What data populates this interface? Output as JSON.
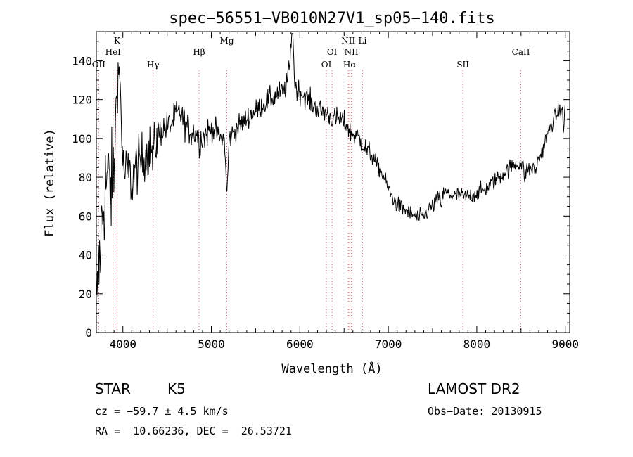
{
  "chart_data": {
    "type": "line",
    "title": "spec−56551−VB010N27V1_sp05−140.fits",
    "xlabel": "Wavelength (Å)",
    "ylabel": "Flux (relative)",
    "xlim": [
      3700,
      9050
    ],
    "ylim": [
      0,
      155
    ],
    "xticks": [
      "4000",
      "5000",
      "6000",
      "7000",
      "8000",
      "9000"
    ],
    "yticks": [
      "0",
      "20",
      "40",
      "60",
      "80",
      "100",
      "120",
      "140"
    ],
    "spectrum_anchors": [
      [
        3700,
        5
      ],
      [
        3720,
        25
      ],
      [
        3740,
        40
      ],
      [
        3760,
        55
      ],
      [
        3780,
        65
      ],
      [
        3800,
        75
      ],
      [
        3830,
        80
      ],
      [
        3860,
        75
      ],
      [
        3900,
        72
      ],
      [
        3950,
        78
      ],
      [
        4000,
        80
      ],
      [
        4050,
        83
      ],
      [
        4100,
        84
      ],
      [
        4150,
        85
      ],
      [
        4200,
        88
      ],
      [
        4250,
        92
      ],
      [
        4300,
        94
      ],
      [
        4350,
        96
      ],
      [
        4400,
        102
      ],
      [
        4450,
        105
      ],
      [
        4500,
        106
      ],
      [
        4550,
        108
      ],
      [
        4600,
        112
      ],
      [
        4650,
        113
      ],
      [
        4700,
        108
      ],
      [
        4750,
        104
      ],
      [
        4800,
        103
      ],
      [
        4850,
        104
      ],
      [
        4900,
        100
      ],
      [
        4950,
        103
      ],
      [
        5000,
        105
      ],
      [
        5050,
        104
      ],
      [
        5100,
        100
      ],
      [
        5150,
        100
      ],
      [
        5200,
        100
      ],
      [
        5250,
        103
      ],
      [
        5300,
        106
      ],
      [
        5350,
        108
      ],
      [
        5400,
        110
      ],
      [
        5450,
        113
      ],
      [
        5500,
        114
      ],
      [
        5550,
        116
      ],
      [
        5600,
        118
      ],
      [
        5650,
        120
      ],
      [
        5700,
        121
      ],
      [
        5750,
        123
      ],
      [
        5800,
        124
      ],
      [
        5850,
        125
      ],
      [
        5900,
        124
      ],
      [
        5950,
        126
      ],
      [
        6000,
        124
      ],
      [
        6050,
        122
      ],
      [
        6100,
        120
      ],
      [
        6150,
        117
      ],
      [
        6200,
        115
      ],
      [
        6250,
        114
      ],
      [
        6300,
        113
      ],
      [
        6350,
        111
      ],
      [
        6400,
        110
      ],
      [
        6450,
        110
      ],
      [
        6500,
        108
      ],
      [
        6550,
        106
      ],
      [
        6600,
        102
      ],
      [
        6650,
        101
      ],
      [
        6700,
        98
      ],
      [
        6750,
        94
      ],
      [
        6800,
        92
      ],
      [
        6850,
        88
      ],
      [
        6900,
        84
      ],
      [
        6950,
        80
      ],
      [
        7000,
        74
      ],
      [
        7050,
        69
      ],
      [
        7100,
        66
      ],
      [
        7150,
        64
      ],
      [
        7200,
        63
      ],
      [
        7250,
        61
      ],
      [
        7300,
        60
      ],
      [
        7350,
        59
      ],
      [
        7400,
        60
      ],
      [
        7450,
        63
      ],
      [
        7500,
        65
      ],
      [
        7550,
        68
      ],
      [
        7600,
        71
      ],
      [
        7650,
        72
      ],
      [
        7700,
        71
      ],
      [
        7750,
        70
      ],
      [
        7800,
        71
      ],
      [
        7850,
        70
      ],
      [
        7900,
        70
      ],
      [
        7950,
        71
      ],
      [
        8000,
        72
      ],
      [
        8050,
        73
      ],
      [
        8100,
        74
      ],
      [
        8150,
        76
      ],
      [
        8200,
        78
      ],
      [
        8250,
        80
      ],
      [
        8300,
        82
      ],
      [
        8350,
        84
      ],
      [
        8400,
        86
      ],
      [
        8450,
        87
      ],
      [
        8500,
        87
      ],
      [
        8550,
        85
      ],
      [
        8600,
        84
      ],
      [
        8650,
        85
      ],
      [
        8700,
        89
      ],
      [
        8750,
        95
      ],
      [
        8800,
        102
      ],
      [
        8850,
        108
      ],
      [
        8900,
        112
      ],
      [
        8950,
        115
      ],
      [
        9000,
        118
      ]
    ],
    "spectrum_features": [
      [
        3933,
        45,
        20
      ],
      [
        3968,
        40,
        18
      ],
      [
        4101,
        -8,
        15
      ],
      [
        4340,
        -6,
        12
      ],
      [
        4861,
        -5,
        12
      ],
      [
        5175,
        -28,
        12
      ],
      [
        5890,
        12,
        25
      ],
      [
        5915,
        30,
        12
      ],
      [
        6563,
        -2,
        10
      ],
      [
        7600,
        -5,
        8
      ],
      [
        8542,
        -5,
        10
      ],
      [
        8662,
        -3,
        10
      ],
      [
        8980,
        -12,
        8
      ]
    ],
    "lines": [
      {
        "label": "OII",
        "wavelength": 3727,
        "row": 3
      },
      {
        "label": "K",
        "wavelength": 3934,
        "row": 1
      },
      {
        "label": "HeI",
        "wavelength": 3889,
        "row": 2
      },
      {
        "label": "Hγ",
        "wavelength": 4341,
        "row": 3
      },
      {
        "label": "Hβ",
        "wavelength": 4861,
        "row": 2
      },
      {
        "label": "Mg",
        "wavelength": 5175,
        "row": 1
      },
      {
        "label": "OI",
        "wavelength": 6300,
        "row": 3
      },
      {
        "label": "OI",
        "wavelength": 6364,
        "row": 2
      },
      {
        "label": "NII",
        "wavelength": 6548,
        "row": 1
      },
      {
        "label": "NII",
        "wavelength": 6583,
        "row": 2
      },
      {
        "label": "Hα",
        "wavelength": 6563,
        "row": 3
      },
      {
        "label": "Li",
        "wavelength": 6708,
        "row": 1
      },
      {
        "label": "SII",
        "wavelength": 7843,
        "row": 3
      },
      {
        "label": "CaII",
        "wavelength": 8498,
        "row": 2
      }
    ],
    "colors": {
      "spectrum": "#000000",
      "line_markers": "#e06060",
      "axes": "#000000"
    }
  },
  "info": {
    "object_class": "STAR",
    "subclass": "K5",
    "survey": "LAMOST DR2",
    "cz": "cz = −59.7 ± 4.5 km/s",
    "obs_date": "Obs−Date: 20130915",
    "coords": "RA =  10.66236, DEC =  26.53721"
  }
}
